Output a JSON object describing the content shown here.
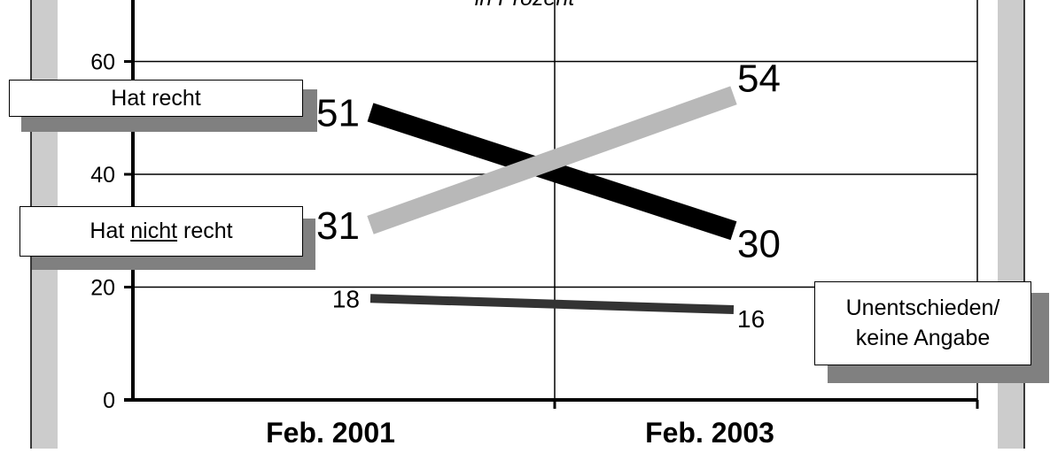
{
  "chart_data": {
    "type": "line",
    "subtitle": "in Prozent",
    "categories": [
      "Feb. 2001",
      "Feb. 2003"
    ],
    "ylim": [
      0,
      70
    ],
    "yticks": [
      0,
      20,
      40,
      60
    ],
    "grid": true,
    "series": [
      {
        "name": "Hat recht",
        "values": [
          51,
          30
        ],
        "color": "#000000"
      },
      {
        "name": "Hat nicht recht",
        "values": [
          31,
          54
        ],
        "color": "#b8b8b8"
      },
      {
        "name": "Unentschieden/ keine Angabe",
        "values": [
          18,
          16
        ],
        "color": "#333333"
      }
    ],
    "legend": {
      "hat_recht": "Hat recht",
      "nicht_prefix": "Hat ",
      "nicht_emph": "nicht",
      "nicht_suffix": " recht",
      "undecided_line1": "Unentschieden/",
      "undecided_line2": "keine Angabe"
    }
  }
}
